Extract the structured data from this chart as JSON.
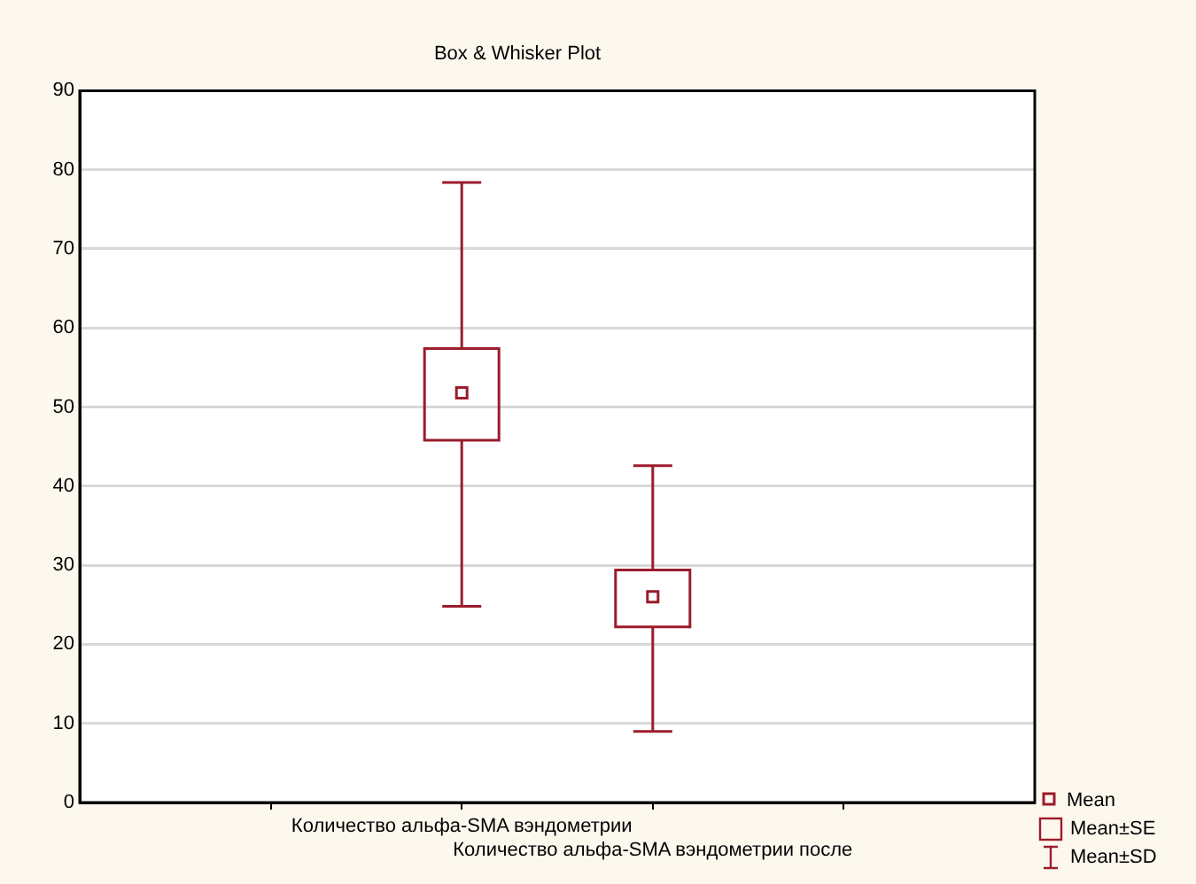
{
  "chart_data": {
    "type": "box",
    "title": "Box & Whisker Plot",
    "categories": [
      null,
      "Количество альфа-SMA вэндометрии",
      "Количество альфа-SMA вэндометрии после",
      null
    ],
    "series": [
      {
        "color": "#9b1c2c",
        "boxes": [
          null,
          {
            "low": 24.8,
            "q1": 45.8,
            "median": 51.8,
            "q3": 57.4,
            "high": 78.4
          },
          {
            "low": 9.0,
            "q1": 22.2,
            "median": 26.0,
            "q3": 29.4,
            "high": 42.6
          },
          null
        ]
      }
    ],
    "ylim": [
      0,
      90
    ],
    "yticks": [
      0,
      10,
      20,
      30,
      40,
      50,
      60,
      70,
      80,
      90
    ],
    "grid": "y",
    "annotations": [
      "Mean",
      "Mean±SE",
      "Mean±SD"
    ]
  }
}
